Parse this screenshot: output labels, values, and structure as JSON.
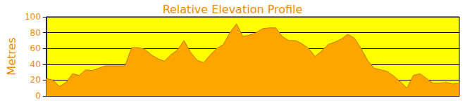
{
  "chart_data": {
    "type": "area",
    "title": "Relative Elevation Profile",
    "ylabel": "Metres",
    "categories": [
      null,
      null,
      null,
      null,
      null,
      null,
      null,
      null,
      null,
      null,
      null,
      null,
      null,
      null,
      null,
      null,
      null,
      null,
      null,
      null,
      null,
      null,
      null,
      null,
      null,
      null,
      null,
      null,
      null,
      null,
      null,
      null,
      null,
      null,
      null,
      null,
      null,
      null,
      null,
      null,
      null,
      null,
      null,
      null,
      null,
      null,
      null,
      null,
      null,
      null,
      null,
      null,
      null,
      null,
      null,
      null,
      null,
      null,
      null,
      null,
      null,
      null,
      null,
      null
    ],
    "values": [
      22,
      20,
      12,
      17,
      28,
      26,
      33,
      32,
      35,
      38,
      38,
      38,
      38,
      61,
      61,
      59,
      52,
      47,
      44,
      52,
      58,
      70,
      55,
      45,
      42,
      52,
      60,
      65,
      80,
      91,
      75,
      77,
      80,
      85,
      86,
      86,
      75,
      70,
      70,
      66,
      60,
      50,
      57,
      65,
      68,
      72,
      78,
      73,
      60,
      45,
      35,
      33,
      31,
      25,
      18,
      10,
      26,
      28,
      22,
      16,
      16,
      17,
      15,
      16
    ],
    "color": "#ffa500",
    "ylim": [
      0,
      100
    ],
    "yticks": [
      0,
      20,
      40,
      60,
      80,
      100
    ],
    "grid": true,
    "tick_labels": "y"
  }
}
